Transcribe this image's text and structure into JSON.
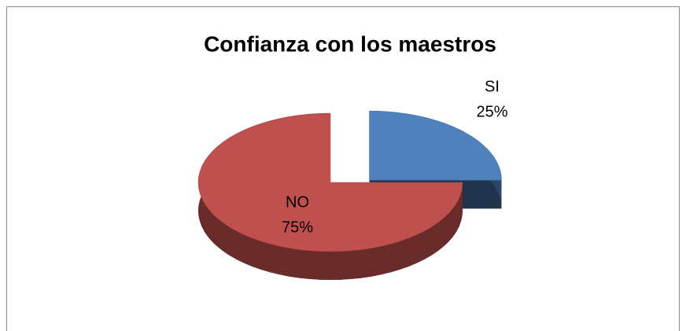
{
  "chart_data": {
    "type": "pie",
    "title": "Confianza con los maestros",
    "categories": [
      "SI",
      "NO"
    ],
    "values": [
      25,
      75
    ],
    "value_labels": [
      "25%",
      "75%"
    ],
    "colors": [
      "#4f81bd",
      "#c0504d"
    ],
    "exploded": [
      true,
      false
    ]
  }
}
